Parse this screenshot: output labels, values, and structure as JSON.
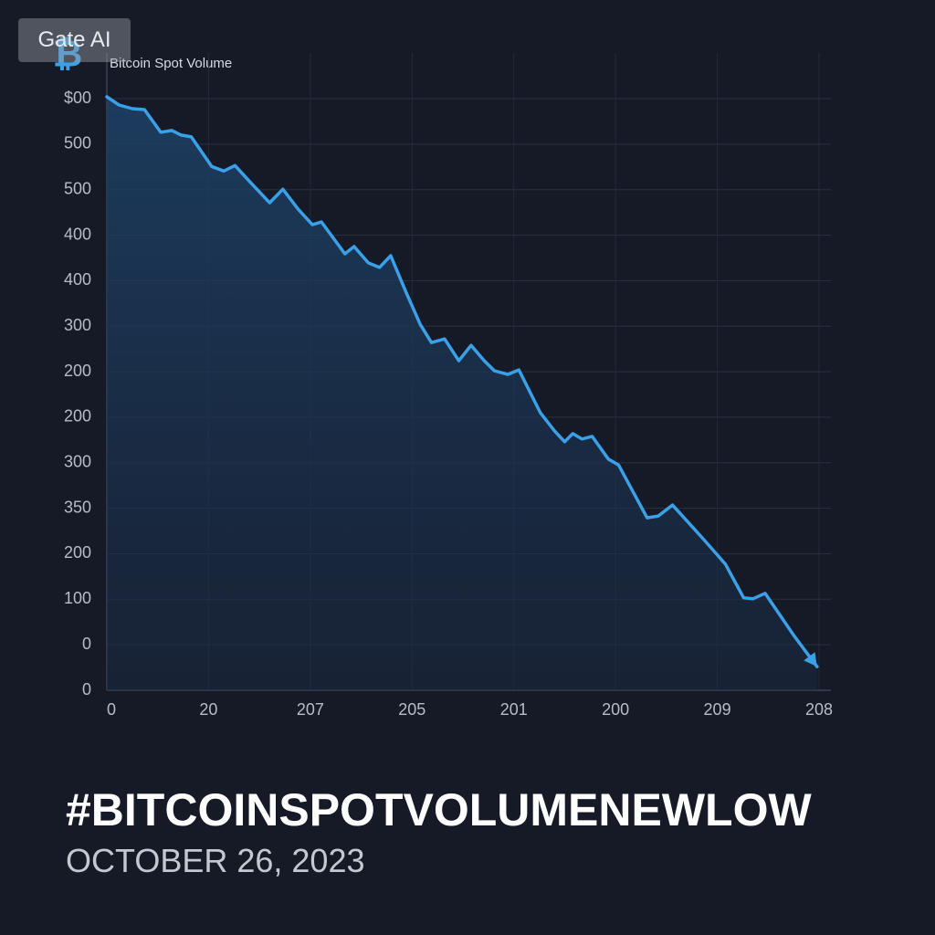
{
  "badge": "Gate AI",
  "icon": "₿",
  "headline": "#BITCOINSPOTVOLUMENEWLOW",
  "date": "OCTOBER 26, 2023",
  "chart_data": {
    "type": "line",
    "title": "Bitcoin Spot Volume",
    "x": [
      0,
      0.12,
      0.25,
      0.37,
      0.53,
      0.64,
      0.73,
      0.83,
      1.03,
      1.15,
      1.26,
      1.39,
      1.6,
      1.73,
      1.88,
      2.02,
      2.11,
      2.34,
      2.43,
      2.57,
      2.68,
      2.79,
      2.94,
      3.08,
      3.19,
      3.32,
      3.46,
      3.58,
      3.71,
      3.81,
      3.94,
      4.05,
      4.26,
      4.4,
      4.5,
      4.58,
      4.67,
      4.77,
      4.93,
      5.03,
      5.31,
      5.42,
      5.56,
      5.86,
      6.08,
      6.26,
      6.35,
      6.47,
      6.76,
      6.98
    ],
    "series": [
      {
        "color": "#3aa0e8",
        "values": [
          13.04,
          12.86,
          12.78,
          12.76,
          12.26,
          12.3,
          12.2,
          12.16,
          11.51,
          11.41,
          11.53,
          11.21,
          10.71,
          11.01,
          10.57,
          10.23,
          10.29,
          9.59,
          9.75,
          9.39,
          9.29,
          9.55,
          8.75,
          8.04,
          7.64,
          7.72,
          7.24,
          7.58,
          7.24,
          7.02,
          6.94,
          7.04,
          6.1,
          5.7,
          5.46,
          5.64,
          5.52,
          5.58,
          5.08,
          4.95,
          3.79,
          3.83,
          4.07,
          3.33,
          2.77,
          2.03,
          2.01,
          2.13,
          1.18,
          0.52
        ]
      }
    ],
    "xlim": [
      0,
      7
    ],
    "xticks": [
      {
        "value": 0,
        "label": "0"
      },
      {
        "value": 1,
        "label": "20"
      },
      {
        "value": 2,
        "label": "207"
      },
      {
        "value": 3,
        "label": "205"
      },
      {
        "value": 4,
        "label": "201"
      },
      {
        "value": 5,
        "label": "200"
      },
      {
        "value": 6,
        "label": "209"
      },
      {
        "value": 7,
        "label": "208"
      }
    ],
    "ylim": [
      0,
      13
    ],
    "yticks": [
      {
        "value": 0,
        "label": "0"
      },
      {
        "value": 1,
        "label": "0"
      },
      {
        "value": 2,
        "label": "100"
      },
      {
        "value": 3,
        "label": "200"
      },
      {
        "value": 4,
        "label": "350"
      },
      {
        "value": 5,
        "label": "300"
      },
      {
        "value": 6,
        "label": "200"
      },
      {
        "value": 7,
        "label": "200"
      },
      {
        "value": 8,
        "label": "300"
      },
      {
        "value": 9,
        "label": "400"
      },
      {
        "value": 10,
        "label": "400"
      },
      {
        "value": 11,
        "label": "500"
      },
      {
        "value": 12,
        "label": "500"
      },
      {
        "value": 13,
        "label": "$00"
      }
    ],
    "grid": true
  }
}
